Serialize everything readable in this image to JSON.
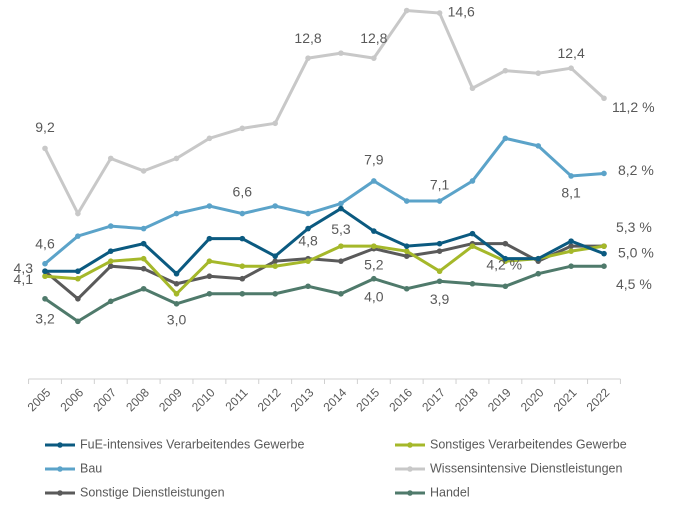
{
  "chart_data": {
    "type": "line",
    "categories": [
      "2005",
      "2006",
      "2007",
      "2008",
      "2009",
      "2010",
      "2011",
      "2012",
      "2013",
      "2014",
      "2015",
      "2016",
      "2017",
      "2018",
      "2019",
      "2020",
      "2021",
      "2022"
    ],
    "ylim": [
      0,
      15
    ],
    "series": [
      {
        "name": "FuE-intensives Verarbeitendes Gewerbe",
        "color": "#0b5a80",
        "values": [
          4.3,
          4.3,
          5.1,
          5.4,
          4.2,
          5.6,
          5.6,
          4.9,
          6.0,
          6.8,
          5.9,
          5.3,
          5.4,
          5.8,
          4.8,
          4.8,
          5.5,
          5.0
        ],
        "value_labels": [
          "4,3",
          null,
          null,
          null,
          null,
          null,
          null,
          null,
          null,
          null,
          null,
          null,
          null,
          null,
          null,
          null,
          null,
          "5,0 %"
        ]
      },
      {
        "name": "Sonstiges Verarbeitendes Gewerbe",
        "color": "#a5b82a",
        "values": [
          4.1,
          4.0,
          4.7,
          4.8,
          3.4,
          4.7,
          4.5,
          4.5,
          4.7,
          5.3,
          5.3,
          5.1,
          4.3,
          5.3,
          4.7,
          4.8,
          5.1,
          5.3
        ],
        "value_labels": [
          "4,1",
          null,
          null,
          null,
          null,
          null,
          null,
          null,
          null,
          "5,3",
          null,
          null,
          null,
          null,
          null,
          null,
          null,
          null
        ]
      },
      {
        "name": "Bau",
        "color": "#5ba3c9",
        "values": [
          4.6,
          5.7,
          6.1,
          6.0,
          6.6,
          6.9,
          6.6,
          6.9,
          6.6,
          7.0,
          7.9,
          7.1,
          7.1,
          7.9,
          9.6,
          9.3,
          8.1,
          8.2
        ],
        "value_labels": [
          "4,6",
          null,
          null,
          null,
          null,
          null,
          "6,6",
          null,
          null,
          null,
          "7,9",
          null,
          "7,1",
          null,
          null,
          null,
          "8,1",
          "8,2 %"
        ]
      },
      {
        "name": "Wissensintensive Dienstleistungen",
        "color": "#c8c8c8",
        "values": [
          9.2,
          6.6,
          8.8,
          8.3,
          8.8,
          9.6,
          10.0,
          10.2,
          12.8,
          13.0,
          12.8,
          14.7,
          14.6,
          11.6,
          12.3,
          12.2,
          12.4,
          11.2
        ],
        "value_labels": [
          "9,2",
          null,
          null,
          null,
          null,
          null,
          null,
          null,
          "12,8",
          null,
          "12,8",
          null,
          "14,6",
          null,
          null,
          null,
          "12,4",
          "11,2 %"
        ]
      },
      {
        "name": "Sonstige Dienstleistungen",
        "color": "#5a5a5a",
        "values": [
          4.3,
          3.2,
          4.5,
          4.4,
          3.8,
          4.1,
          4.0,
          4.7,
          4.8,
          4.7,
          5.2,
          4.9,
          5.1,
          5.4,
          5.4,
          4.7,
          5.3,
          5.3
        ],
        "value_labels": [
          null,
          null,
          null,
          null,
          null,
          null,
          null,
          null,
          "4,8",
          null,
          "5,2",
          null,
          null,
          null,
          null,
          null,
          null,
          "5,3 %"
        ]
      },
      {
        "name": "Handel",
        "color": "#4f7a6b",
        "values": [
          3.2,
          2.3,
          3.1,
          3.6,
          3.0,
          3.4,
          3.4,
          3.4,
          3.7,
          3.4,
          4.0,
          3.6,
          3.9,
          3.8,
          3.7,
          4.2,
          4.5,
          4.5
        ],
        "value_labels": [
          "3,2",
          null,
          null,
          null,
          "3,0",
          null,
          null,
          null,
          null,
          null,
          "4,0",
          null,
          "3,9",
          null,
          null,
          "4,2 %",
          null,
          "4,5 %"
        ]
      }
    ]
  }
}
